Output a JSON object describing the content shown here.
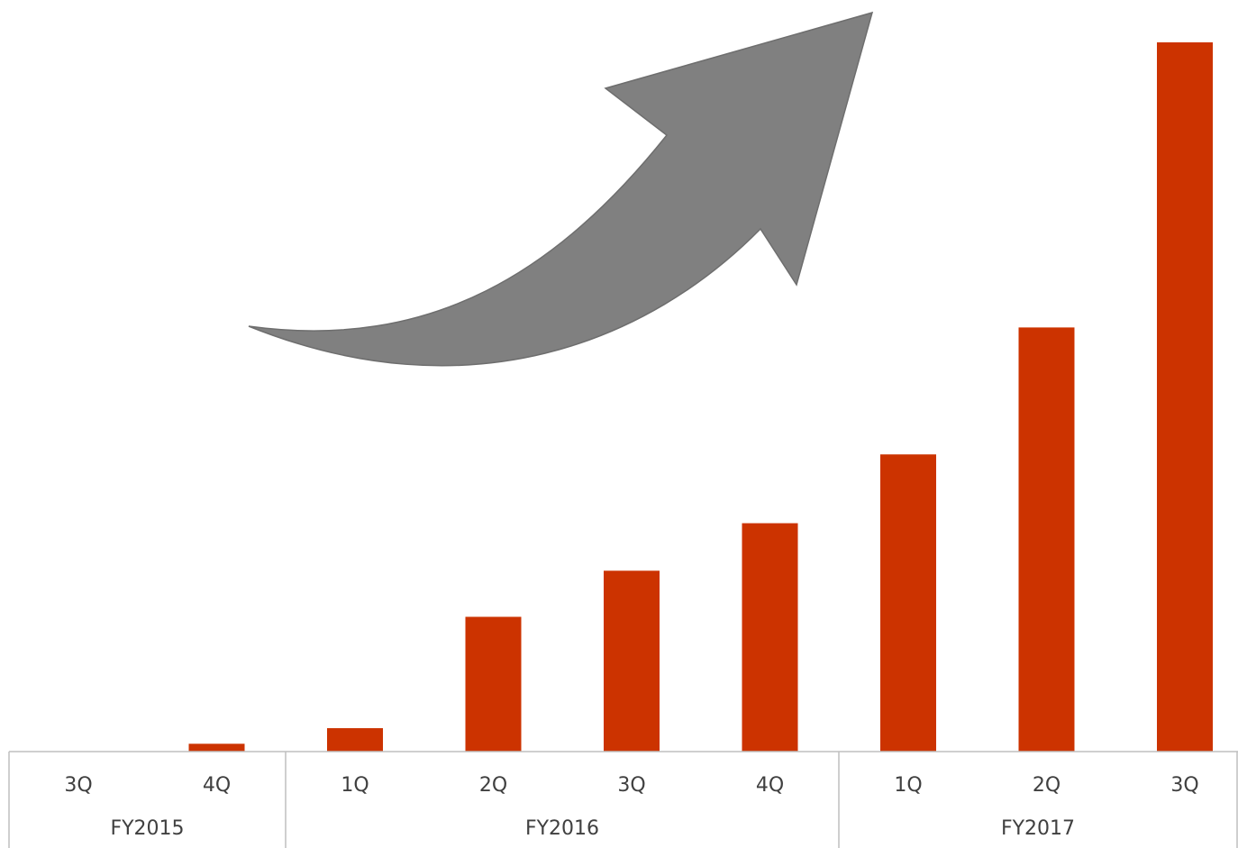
{
  "chart_data": {
    "type": "bar",
    "title": "",
    "xlabel": "",
    "ylabel": "",
    "categories": [
      "3Q",
      "4Q",
      "1Q",
      "2Q",
      "3Q",
      "4Q",
      "1Q",
      "2Q",
      "3Q"
    ],
    "groups": [
      {
        "label": "FY2015",
        "count": 2
      },
      {
        "label": "FY2016",
        "count": 4
      },
      {
        "label": "FY2017",
        "count": 3
      }
    ],
    "values": [
      0,
      1.1,
      3.3,
      19,
      25.5,
      32.2,
      41.9,
      59.8,
      100
    ],
    "ylim": [
      0,
      100
    ],
    "grid": false,
    "legend": "none",
    "bar_color": "#cc3300",
    "arrow_color": "#808080",
    "axis_color": "#bfbfbf",
    "annotation": "upward-trend-arrow"
  }
}
